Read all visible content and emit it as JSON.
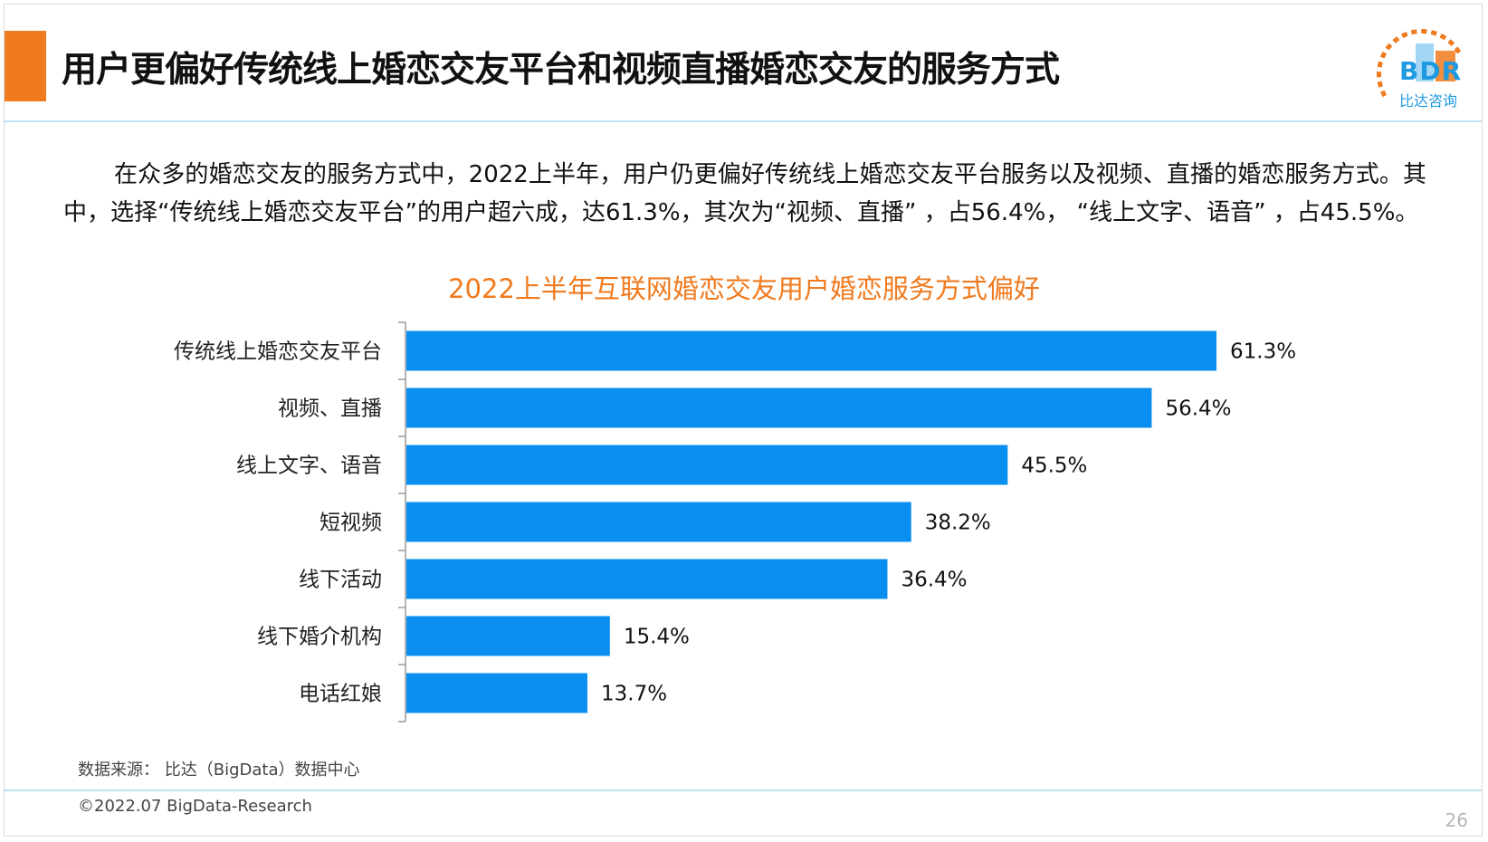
{
  "header": {
    "title": "用户更偏好传统线上婚恋交友平台和视频直播婚恋交友的服务方式"
  },
  "logo": {
    "name": "BDR",
    "subtitle": "比达咨询"
  },
  "intro_text": "在众多的婚恋交友的服务方式中，2022上半年，用户仍更偏好传统线上婚恋交友平台服务以及视频、直播的婚恋服务方式。其中，选择“传统线上婚恋交友平台”的用户超六成，达61.3%，其次为“视频、直播” ，占56.4%， “线上文字、语音” ，占45.5%。",
  "chart_data": {
    "type": "bar",
    "orientation": "horizontal",
    "title": "2022上半年互联网婚恋交友用户婚恋服务方式偏好",
    "categories": [
      "传统线上婚恋交友平台",
      "视频、直播",
      "线上文字、语音",
      "短视频",
      "线下活动",
      "线下婚介机构",
      "电话红娘"
    ],
    "values": [
      61.3,
      56.4,
      45.5,
      38.2,
      36.4,
      15.4,
      13.7
    ],
    "value_labels": [
      "61.3%",
      "56.4%",
      "45.5%",
      "38.2%",
      "36.4%",
      "15.4%",
      "13.7%"
    ],
    "unit": "%",
    "xlim": [
      0,
      70
    ],
    "bar_color": "#0a8ff0",
    "grid": false,
    "legend": "none"
  },
  "footer": {
    "source": "数据来源： 比达（BigData）数据中心",
    "copyright": "©2022.07 BigData-Research",
    "page_number": "26"
  },
  "colors": {
    "accent": "#f07a1e",
    "brand_blue": "#1f9ae0",
    "rule": "#bfe0f2"
  }
}
